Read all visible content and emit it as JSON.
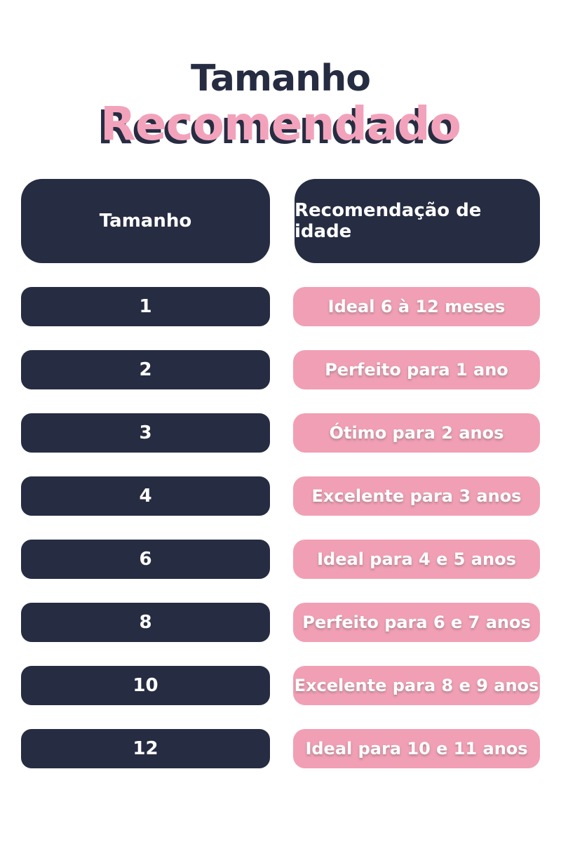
{
  "title": {
    "line1": "Tamanho",
    "line2": "Recomendado"
  },
  "colors": {
    "navy": "#262c42",
    "pink_badge": "#f19fb4",
    "pink_title": "#f2a3bb",
    "text_on_dark": "#ffffff",
    "background": "#ffffff"
  },
  "table": {
    "headers": [
      {
        "label": "Tamanho"
      },
      {
        "label": "Recomendação de idade"
      }
    ],
    "rows": [
      {
        "size": "1",
        "recommendation": "Ideal 6 à 12 meses"
      },
      {
        "size": "2",
        "recommendation": "Perfeito para 1 ano"
      },
      {
        "size": "3",
        "recommendation": "Ótimo para 2 anos"
      },
      {
        "size": "4",
        "recommendation": "Excelente para 3 anos"
      },
      {
        "size": "6",
        "recommendation": "Ideal para 4 e 5 anos"
      },
      {
        "size": "8",
        "recommendation": "Perfeito para 6 e 7 anos"
      },
      {
        "size": "10",
        "recommendation": "Excelente para 8 e 9 anos"
      },
      {
        "size": "12",
        "recommendation": "Ideal para 10 e 11 anos"
      }
    ]
  },
  "chart_data": {
    "type": "table",
    "title": "Tamanho Recomendado",
    "columns": [
      "Tamanho",
      "Recomendação de idade"
    ],
    "rows": [
      [
        "1",
        "Ideal 6 à 12 meses"
      ],
      [
        "2",
        "Perfeito para 1 ano"
      ],
      [
        "3",
        "Ótimo para 2 anos"
      ],
      [
        "4",
        "Excelente para 3 anos"
      ],
      [
        "6",
        "Ideal para 4 e 5 anos"
      ],
      [
        "8",
        "Perfeito para 6 e 7 anos"
      ],
      [
        "10",
        "Excelente para 8 e 9 anos"
      ],
      [
        "12",
        "Ideal para 10 e 11 anos"
      ]
    ]
  }
}
